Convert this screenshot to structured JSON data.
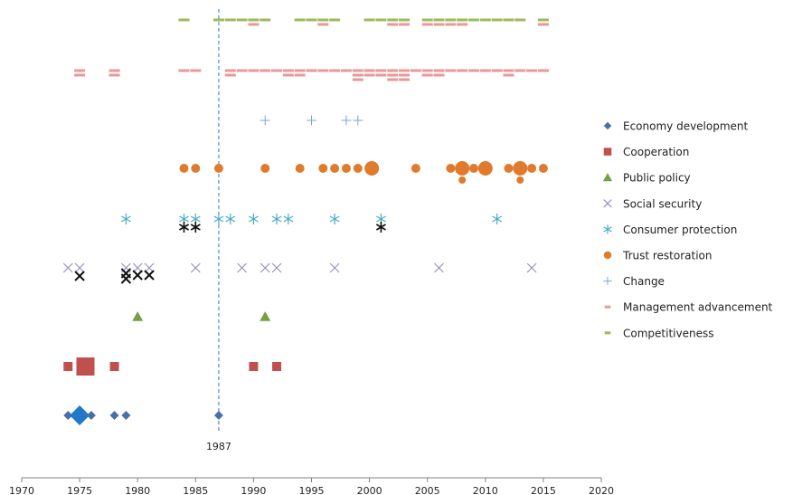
{
  "chart_data": {
    "type": "scatter",
    "title": "",
    "xlabel": "",
    "ylabel": "",
    "xlim": [
      1970,
      2020
    ],
    "x_ticks": [
      1970,
      1975,
      1980,
      1985,
      1990,
      1995,
      2000,
      2005,
      2010,
      2015,
      2020
    ],
    "grid": false,
    "legend_position": "right",
    "annotation": {
      "x": 1987,
      "label": "1987",
      "style": "dashed-vertical-line"
    },
    "series": [
      {
        "name": "Economy development",
        "marker": "diamond",
        "color": "#4a6fa8",
        "row": 1,
        "points": [
          {
            "x": 1974,
            "s": 1
          },
          {
            "x": 1975,
            "s": 2.2,
            "color": "#1f78c8"
          },
          {
            "x": 1976,
            "s": 1
          },
          {
            "x": 1978,
            "s": 1
          },
          {
            "x": 1979,
            "s": 1
          },
          {
            "x": 1987,
            "s": 1
          }
        ]
      },
      {
        "name": "Cooperation",
        "marker": "square",
        "color": "#c0504d",
        "row": 2,
        "points": [
          {
            "x": 1974,
            "s": 1
          },
          {
            "x": 1975.5,
            "s": 2
          },
          {
            "x": 1978,
            "s": 1
          },
          {
            "x": 1990,
            "s": 1
          },
          {
            "x": 1992,
            "s": 1
          }
        ]
      },
      {
        "name": "Public policy",
        "marker": "triangle",
        "color": "#77a045",
        "row": 3,
        "points": [
          {
            "x": 1980,
            "s": 1
          },
          {
            "x": 1991,
            "s": 1
          }
        ]
      },
      {
        "name": "Social security",
        "marker": "x",
        "color": "#9b8fc0",
        "row": 4,
        "points": [
          {
            "x": 1974,
            "s": 1
          },
          {
            "x": 1975,
            "s": 1
          },
          {
            "x": 1979,
            "s": 1
          },
          {
            "x": 1980,
            "s": 1
          },
          {
            "x": 1981,
            "s": 1
          },
          {
            "x": 1985,
            "s": 1
          },
          {
            "x": 1989,
            "s": 1
          },
          {
            "x": 1991,
            "s": 1
          },
          {
            "x": 1992,
            "s": 1
          },
          {
            "x": 1997,
            "s": 1
          },
          {
            "x": 2006,
            "s": 1
          },
          {
            "x": 2014,
            "s": 1
          },
          {
            "x": 1975,
            "s": 1,
            "color": "#111111",
            "dy": 9
          },
          {
            "x": 1979,
            "s": 1,
            "color": "#111111",
            "dy": 6
          },
          {
            "x": 1979,
            "s": 1,
            "color": "#111111",
            "dy": 12
          },
          {
            "x": 1980,
            "s": 1,
            "color": "#111111",
            "dy": 8
          },
          {
            "x": 1981,
            "s": 1,
            "color": "#111111",
            "dy": 8
          }
        ]
      },
      {
        "name": "Consumer protection",
        "marker": "asterisk",
        "color": "#4bacc6",
        "row": 5,
        "points": [
          {
            "x": 1979,
            "s": 1
          },
          {
            "x": 1984,
            "s": 1
          },
          {
            "x": 1985,
            "s": 1
          },
          {
            "x": 1987,
            "s": 1
          },
          {
            "x": 1988,
            "s": 1
          },
          {
            "x": 1990,
            "s": 1
          },
          {
            "x": 1992,
            "s": 1
          },
          {
            "x": 1993,
            "s": 1
          },
          {
            "x": 1997,
            "s": 1
          },
          {
            "x": 2001,
            "s": 1
          },
          {
            "x": 2011,
            "s": 1
          },
          {
            "x": 1984,
            "s": 1,
            "color": "#111111",
            "dy": 9
          },
          {
            "x": 1985,
            "s": 1,
            "color": "#111111",
            "dy": 9
          },
          {
            "x": 2001,
            "s": 1,
            "color": "#111111",
            "dy": 9
          }
        ]
      },
      {
        "name": "Trust restoration",
        "marker": "circle",
        "color": "#e07b2e",
        "row": 6,
        "points": [
          {
            "x": 1984,
            "s": 1
          },
          {
            "x": 1985,
            "s": 1
          },
          {
            "x": 1987,
            "s": 1
          },
          {
            "x": 1991,
            "s": 1
          },
          {
            "x": 1994,
            "s": 1
          },
          {
            "x": 1996,
            "s": 1
          },
          {
            "x": 1997,
            "s": 1
          },
          {
            "x": 1998,
            "s": 1
          },
          {
            "x": 1999,
            "s": 1
          },
          {
            "x": 2000.2,
            "s": 1.6
          },
          {
            "x": 2004,
            "s": 1
          },
          {
            "x": 2007,
            "s": 1
          },
          {
            "x": 2008,
            "s": 1.6
          },
          {
            "x": 2009,
            "s": 1
          },
          {
            "x": 2010,
            "s": 1.6
          },
          {
            "x": 2012,
            "s": 1
          },
          {
            "x": 2013,
            "s": 1.6
          },
          {
            "x": 2014,
            "s": 1
          },
          {
            "x": 2015,
            "s": 1
          },
          {
            "x": 2008,
            "s": 0.8,
            "dy": 13
          },
          {
            "x": 2013,
            "s": 0.8,
            "dy": 13
          }
        ]
      },
      {
        "name": "Change",
        "marker": "plus",
        "color": "#7aa6d6",
        "row": 7,
        "points": [
          {
            "x": 1991,
            "s": 1
          },
          {
            "x": 1995,
            "s": 1
          },
          {
            "x": 1998,
            "s": 1
          },
          {
            "x": 1999,
            "s": 1
          }
        ]
      },
      {
        "name": "Management advancement",
        "marker": "dash",
        "color": "#e89898",
        "row": 8,
        "points": [
          {
            "x": 1975,
            "s": 1
          },
          {
            "x": 1975,
            "s": 1,
            "dy": 5
          },
          {
            "x": 1978,
            "s": 1
          },
          {
            "x": 1978,
            "s": 1,
            "dy": 5
          },
          {
            "x": 1984,
            "s": 1
          },
          {
            "x": 1985,
            "s": 1
          },
          {
            "x": 1988,
            "s": 1
          },
          {
            "x": 1988,
            "s": 1,
            "dy": 5
          },
          {
            "x": 1989,
            "s": 1
          },
          {
            "x": 1990,
            "s": 1
          },
          {
            "x": 1991,
            "s": 1
          },
          {
            "x": 1992,
            "s": 1
          },
          {
            "x": 1993,
            "s": 1
          },
          {
            "x": 1993,
            "s": 1,
            "dy": 5
          },
          {
            "x": 1994,
            "s": 1
          },
          {
            "x": 1994,
            "s": 1,
            "dy": 5
          },
          {
            "x": 1995,
            "s": 1
          },
          {
            "x": 1996,
            "s": 1
          },
          {
            "x": 1997,
            "s": 1
          },
          {
            "x": 1998,
            "s": 1
          },
          {
            "x": 1999,
            "s": 1
          },
          {
            "x": 1999,
            "s": 1,
            "dy": 5
          },
          {
            "x": 1999,
            "s": 1,
            "dy": 10
          },
          {
            "x": 2000,
            "s": 1
          },
          {
            "x": 2000,
            "s": 1,
            "dy": 5
          },
          {
            "x": 2001,
            "s": 1
          },
          {
            "x": 2001,
            "s": 1,
            "dy": 5
          },
          {
            "x": 2002,
            "s": 1
          },
          {
            "x": 2002,
            "s": 1,
            "dy": 5
          },
          {
            "x": 2002,
            "s": 1,
            "dy": 10
          },
          {
            "x": 2003,
            "s": 1
          },
          {
            "x": 2003,
            "s": 1,
            "dy": 5
          },
          {
            "x": 2003,
            "s": 1,
            "dy": 10
          },
          {
            "x": 2004,
            "s": 1
          },
          {
            "x": 2005,
            "s": 1
          },
          {
            "x": 2005,
            "s": 1,
            "dy": 5
          },
          {
            "x": 2006,
            "s": 1
          },
          {
            "x": 2006,
            "s": 1,
            "dy": 5
          },
          {
            "x": 2007,
            "s": 1
          },
          {
            "x": 2008,
            "s": 1
          },
          {
            "x": 2009,
            "s": 1
          },
          {
            "x": 2010,
            "s": 1
          },
          {
            "x": 2011,
            "s": 1
          },
          {
            "x": 2012,
            "s": 1
          },
          {
            "x": 2012,
            "s": 1,
            "dy": 5
          },
          {
            "x": 2013,
            "s": 1
          },
          {
            "x": 2014,
            "s": 1
          },
          {
            "x": 2015,
            "s": 1
          }
        ]
      },
      {
        "name": "Competitiveness",
        "marker": "dash",
        "color": "#9bbb59",
        "row": 9,
        "points": [
          {
            "x": 1984,
            "s": 1
          },
          {
            "x": 1987,
            "s": 1
          },
          {
            "x": 1988,
            "s": 1
          },
          {
            "x": 1989,
            "s": 1
          },
          {
            "x": 1990,
            "s": 1
          },
          {
            "x": 1991,
            "s": 1
          },
          {
            "x": 1994,
            "s": 1
          },
          {
            "x": 1995,
            "s": 1
          },
          {
            "x": 1996,
            "s": 1
          },
          {
            "x": 1997,
            "s": 1
          },
          {
            "x": 2000,
            "s": 1
          },
          {
            "x": 2001,
            "s": 1
          },
          {
            "x": 2002,
            "s": 1
          },
          {
            "x": 2003,
            "s": 1
          },
          {
            "x": 2005,
            "s": 1
          },
          {
            "x": 2006,
            "s": 1
          },
          {
            "x": 2007,
            "s": 1
          },
          {
            "x": 2008,
            "s": 1
          },
          {
            "x": 2009,
            "s": 1
          },
          {
            "x": 2010,
            "s": 1
          },
          {
            "x": 2011,
            "s": 1
          },
          {
            "x": 2012,
            "s": 1
          },
          {
            "x": 2013,
            "s": 1
          },
          {
            "x": 2015,
            "s": 1
          },
          {
            "x": 1990,
            "s": 1,
            "color": "#e89898",
            "dy": 5
          },
          {
            "x": 1996,
            "s": 1,
            "color": "#e89898",
            "dy": 5
          },
          {
            "x": 2002,
            "s": 1,
            "color": "#e89898",
            "dy": 5
          },
          {
            "x": 2003,
            "s": 1,
            "color": "#e89898",
            "dy": 5
          },
          {
            "x": 2005,
            "s": 1,
            "color": "#e89898",
            "dy": 5
          },
          {
            "x": 2006,
            "s": 1,
            "color": "#e89898",
            "dy": 5
          },
          {
            "x": 2007,
            "s": 1,
            "color": "#e89898",
            "dy": 5
          },
          {
            "x": 2008,
            "s": 1,
            "color": "#e89898",
            "dy": 5
          },
          {
            "x": 2015,
            "s": 1,
            "color": "#e89898",
            "dy": 5
          }
        ]
      }
    ]
  }
}
